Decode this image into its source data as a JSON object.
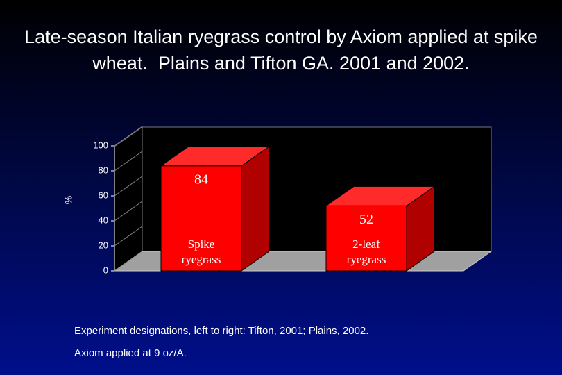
{
  "chart_data": {
    "type": "bar",
    "title": "Late-season Italian ryegrass control by Axiom applied at spike wheat.  Plains and Tifton GA. 2001 and 2002.",
    "ylabel": "%",
    "categories": [
      "Spike ryegrass",
      "2-leaf ryegrass"
    ],
    "values": [
      84,
      52
    ],
    "color": "#ff0000",
    "ylim": [
      0,
      100
    ],
    "yticks": [
      0,
      20,
      40,
      60,
      80,
      100
    ],
    "notes": [
      "Experiment designations, left to right: Tifton, 2001; Plains, 2002.",
      "Axiom applied at 9 oz/A."
    ]
  }
}
